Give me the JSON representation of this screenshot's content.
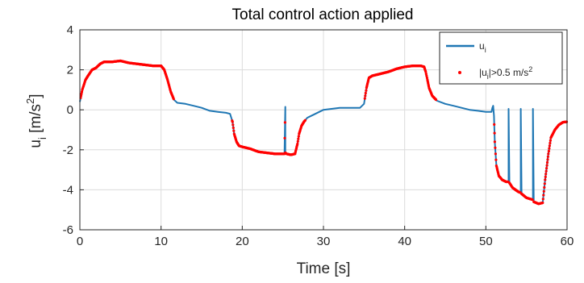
{
  "chart_data": {
    "type": "line",
    "title": "Total control action applied",
    "xlabel": "Time [s]",
    "ylabel": "u",
    "ylabel_sub": "i",
    "ylabel_units": " [m/s",
    "ylabel_sup": "2",
    "ylabel_close": "]",
    "xlim": [
      0,
      60
    ],
    "ylim": [
      -6,
      4
    ],
    "xticks": [
      0,
      10,
      20,
      30,
      40,
      50,
      60
    ],
    "yticks": [
      -6,
      -4,
      -2,
      0,
      2,
      4
    ],
    "grid": true,
    "legend_position": "top-right",
    "legend": {
      "line": {
        "main": "u",
        "sub": "i"
      },
      "dots": {
        "pre": "|u",
        "sub": "i",
        "mid": "|>0.5 m/s",
        "sup": "2"
      }
    },
    "colors": {
      "line": "#1f77b4",
      "dots": "#ff0000",
      "grid": "#dcdcdc",
      "axis": "#262626"
    },
    "series": [
      {
        "name": "u",
        "x": [
          0,
          0.3,
          0.7,
          1.0,
          1.5,
          2.0,
          2.5,
          3.0,
          4.0,
          5.0,
          6.0,
          7.0,
          8.0,
          9.0,
          10.0,
          10.4,
          10.8,
          11.2,
          11.6,
          12.0,
          13.0,
          14.0,
          15.0,
          16.0,
          17.0,
          18.0,
          18.5,
          18.8,
          19.0,
          19.3,
          19.6,
          20.0,
          21.0,
          22.0,
          23.0,
          24.0,
          25.0,
          25.2,
          25.3,
          25.3,
          25.45,
          26.0,
          26.5,
          26.8,
          27.0,
          27.3,
          27.6,
          28.0,
          29.0,
          30.0,
          31.0,
          32.0,
          33.0,
          34.0,
          34.5,
          35.0,
          35.3,
          35.6,
          36.0,
          37.0,
          38.0,
          39.0,
          40.0,
          41.0,
          42.0,
          42.4,
          42.6,
          42.8,
          43.0,
          43.4,
          44.0,
          45.0,
          46.0,
          47.0,
          48.0,
          49.0,
          50.0,
          50.7,
          50.8,
          50.9,
          51.0,
          51.1,
          51.3,
          51.6,
          52.0,
          52.5,
          52.8,
          52.8,
          52.9,
          53.3,
          54.0,
          54.3,
          54.3,
          54.4,
          55.0,
          55.8,
          55.8,
          55.9,
          56.5,
          57.0,
          57.3,
          57.7,
          58.0,
          58.5,
          59.0,
          59.5,
          60.0
        ],
        "y": [
          0.4,
          1.0,
          1.5,
          1.7,
          2.0,
          2.1,
          2.3,
          2.4,
          2.4,
          2.45,
          2.35,
          2.3,
          2.25,
          2.2,
          2.2,
          2.0,
          1.5,
          0.9,
          0.5,
          0.35,
          0.3,
          0.2,
          0.1,
          -0.05,
          -0.1,
          -0.15,
          -0.2,
          -0.6,
          -1.2,
          -1.6,
          -1.8,
          -1.85,
          -1.95,
          -2.1,
          -2.15,
          -2.2,
          -2.2,
          -2.2,
          0.15,
          -2.15,
          -2.2,
          -2.25,
          -2.2,
          -1.7,
          -1.2,
          -0.8,
          -0.6,
          -0.4,
          -0.2,
          0.0,
          0.05,
          0.1,
          0.1,
          0.1,
          0.1,
          0.3,
          1.1,
          1.6,
          1.7,
          1.8,
          1.9,
          2.05,
          2.15,
          2.2,
          2.2,
          2.15,
          1.9,
          1.5,
          1.1,
          0.7,
          0.45,
          0.3,
          0.2,
          0.1,
          0.0,
          -0.05,
          -0.1,
          -0.1,
          0.1,
          0.2,
          -0.3,
          -1.6,
          -2.8,
          -3.3,
          -3.5,
          -3.6,
          -3.6,
          0.05,
          -3.65,
          -3.9,
          -4.1,
          -4.15,
          0.05,
          -4.2,
          -4.4,
          -4.5,
          0.05,
          -4.6,
          -4.7,
          -4.65,
          -3.5,
          -2.2,
          -1.4,
          -1.0,
          -0.75,
          -0.62,
          -0.6
        ]
      }
    ],
    "threshold": 0.5
  }
}
